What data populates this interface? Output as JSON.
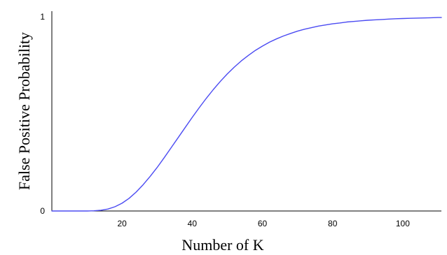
{
  "chart_data": {
    "type": "line",
    "xlabel": "Number of K",
    "ylabel": "False Positive Probability",
    "xlim": [
      0,
      111
    ],
    "ylim": [
      0,
      1
    ],
    "x_ticks": [
      20,
      40,
      60,
      80,
      100
    ],
    "y_ticks": [
      0,
      1
    ],
    "grid": false,
    "legend": "none",
    "series": [
      {
        "color": "#4b4bf2",
        "x": [
          0,
          5,
          10,
          12,
          14,
          16,
          18,
          20,
          22,
          24,
          26,
          28,
          30,
          32,
          34,
          36,
          38,
          40,
          42,
          44,
          46,
          48,
          50,
          52,
          54,
          56,
          58,
          60,
          62,
          64,
          66,
          68,
          70,
          72,
          74,
          76,
          78,
          80,
          82,
          84,
          86,
          88,
          90,
          92,
          94,
          96,
          98,
          100,
          102,
          104,
          106,
          108,
          110,
          111
        ],
        "y": [
          0.0,
          0.0,
          0.0,
          0.001,
          0.004,
          0.01,
          0.022,
          0.04,
          0.065,
          0.097,
          0.135,
          0.178,
          0.224,
          0.274,
          0.326,
          0.378,
          0.43,
          0.482,
          0.532,
          0.58,
          0.625,
          0.667,
          0.706,
          0.741,
          0.773,
          0.801,
          0.827,
          0.849,
          0.869,
          0.886,
          0.901,
          0.914,
          0.926,
          0.936,
          0.944,
          0.952,
          0.958,
          0.964,
          0.968,
          0.973,
          0.976,
          0.979,
          0.982,
          0.984,
          0.986,
          0.988,
          0.99,
          0.991,
          0.992,
          0.993,
          0.994,
          0.995,
          0.996,
          0.996
        ]
      }
    ]
  }
}
